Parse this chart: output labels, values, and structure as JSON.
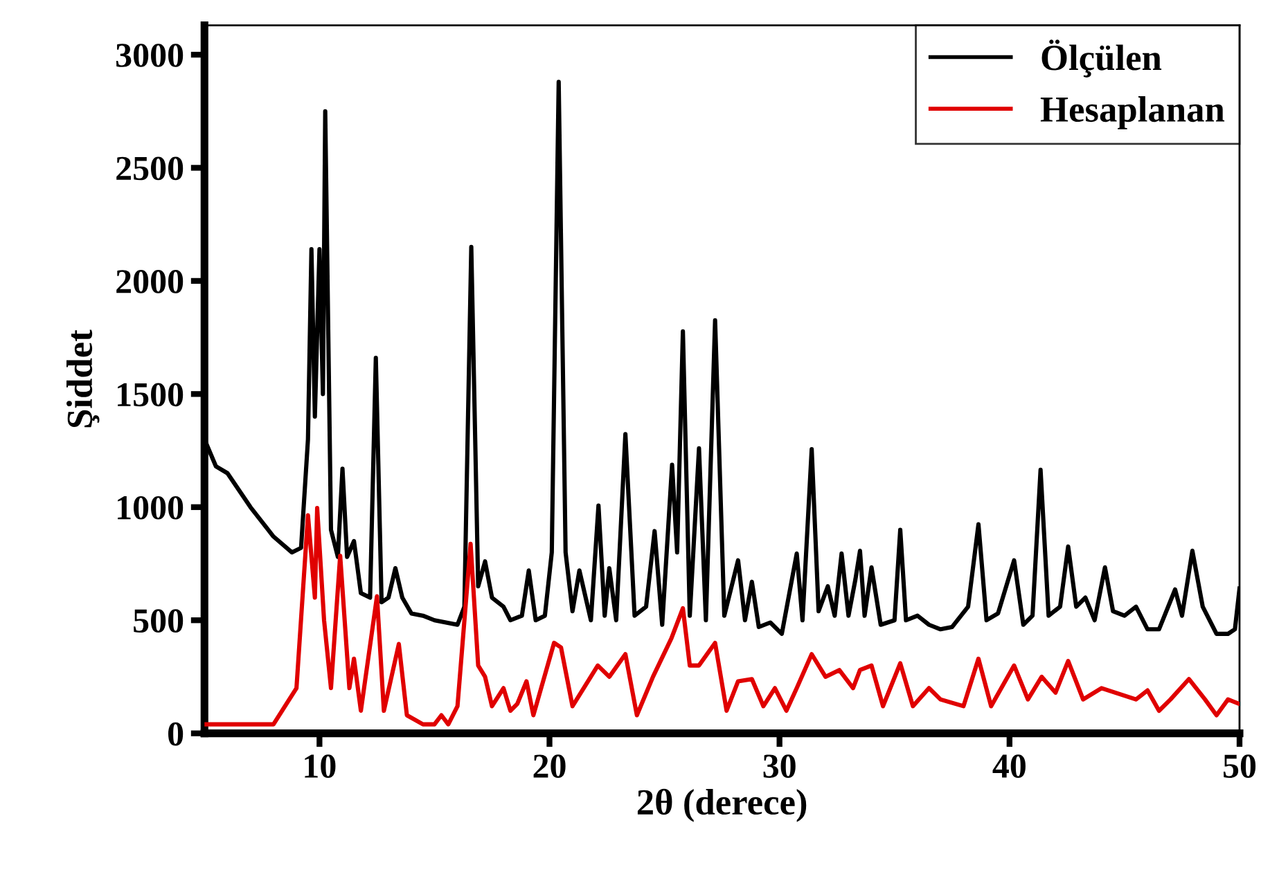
{
  "chart_data": {
    "type": "line",
    "xlabel": "2θ (derece)",
    "ylabel": "Şiddet",
    "xlim": [
      5,
      50
    ],
    "ylim": [
      0,
      3130
    ],
    "xticks": [
      10,
      20,
      30,
      40,
      50
    ],
    "yticks": [
      0,
      500,
      1000,
      1500,
      2000,
      2500,
      3000
    ],
    "grid": false,
    "legend": "top right",
    "marker": "none",
    "line_style": "solid",
    "series": [
      {
        "name": "Ölçülen",
        "color": "#000000",
        "x": [
          5,
          5.5,
          6,
          7,
          8,
          8.8,
          9.2,
          9.5,
          9.65,
          9.8,
          10.0,
          10.15,
          10.25,
          10.5,
          10.8,
          11.0,
          11.2,
          11.5,
          11.8,
          12.2,
          12.45,
          12.7,
          13.0,
          13.3,
          13.6,
          14,
          14.5,
          15,
          16,
          16.3,
          16.6,
          16.9,
          17.2,
          17.5,
          18,
          18.3,
          18.8,
          19.1,
          19.4,
          19.8,
          20.1,
          20.4,
          20.7,
          21.0,
          21.3,
          21.8,
          22.13,
          22.4,
          22.6,
          22.9,
          23.3,
          23.7,
          24.2,
          24.57,
          24.9,
          25.33,
          25.55,
          25.8,
          26.1,
          26.5,
          26.8,
          27.2,
          27.6,
          28.2,
          28.5,
          28.8,
          29.1,
          29.6,
          30.1,
          30.75,
          31.0,
          31.4,
          31.7,
          32.1,
          32.4,
          32.7,
          33.0,
          33.3,
          33.5,
          33.7,
          34.0,
          34.4,
          35.0,
          35.25,
          35.5,
          36,
          36.5,
          37,
          37.5,
          38.2,
          38.65,
          39.0,
          39.5,
          40.2,
          40.6,
          41.0,
          41.35,
          41.7,
          42.2,
          42.55,
          42.9,
          43.3,
          43.7,
          44.15,
          44.5,
          45.0,
          45.5,
          46.0,
          46.5,
          47.2,
          47.5,
          47.95,
          48.4,
          49.0,
          49.5,
          49.8,
          50
        ],
        "values": [
          1300,
          1180,
          1150,
          1000,
          870,
          800,
          820,
          1300,
          2140,
          1400,
          2140,
          1500,
          2750,
          900,
          780,
          1170,
          780,
          850,
          620,
          600,
          1660,
          580,
          600,
          730,
          600,
          530,
          520,
          500,
          480,
          560,
          2150,
          650,
          760,
          600,
          560,
          500,
          520,
          720,
          500,
          520,
          800,
          2880,
          800,
          540,
          720,
          500,
          1007,
          520,
          730,
          500,
          1323,
          520,
          560,
          894,
          480,
          1187,
          800,
          1777,
          520,
          1260,
          500,
          1826,
          520,
          765,
          500,
          670,
          470,
          490,
          440,
          795,
          500,
          1256,
          540,
          650,
          520,
          795,
          520,
          680,
          807,
          520,
          734,
          480,
          500,
          900,
          500,
          520,
          480,
          460,
          470,
          560,
          924,
          500,
          530,
          765,
          480,
          520,
          1165,
          520,
          560,
          826,
          560,
          600,
          500,
          734,
          540,
          520,
          560,
          460,
          460,
          636,
          520,
          807,
          560,
          440,
          440,
          460,
          640
        ]
      },
      {
        "name": "Hesaplanan",
        "color": "#e00000",
        "x": [
          5,
          8,
          9,
          9.5,
          9.8,
          9.9,
          10.2,
          10.5,
          10.9,
          11.3,
          11.5,
          11.8,
          12.5,
          12.8,
          13.45,
          13.8,
          14.5,
          15,
          15.3,
          15.6,
          16,
          16.57,
          16.9,
          17.2,
          17.5,
          18,
          18.3,
          18.6,
          19,
          19.3,
          20.2,
          20.5,
          21,
          22.1,
          22.6,
          23.3,
          23.8,
          24.5,
          25.3,
          25.8,
          26.1,
          26.5,
          27.2,
          27.7,
          28.2,
          28.8,
          29.3,
          29.8,
          30.3,
          30.75,
          31.4,
          32,
          32.6,
          33.2,
          33.5,
          34,
          34.5,
          35.25,
          35.8,
          36.5,
          37,
          38,
          38.65,
          39.2,
          40.2,
          40.8,
          41.4,
          42,
          42.55,
          43.2,
          44,
          44.6,
          45.5,
          46,
          46.5,
          47,
          47.8,
          48.5,
          49,
          49.5,
          50
        ],
        "values": [
          40,
          40,
          200,
          964,
          600,
          996,
          500,
          200,
          785,
          200,
          330,
          100,
          606,
          100,
          395,
          80,
          40,
          40,
          80,
          40,
          120,
          838,
          300,
          250,
          120,
          200,
          100,
          130,
          230,
          80,
          400,
          380,
          120,
          300,
          250,
          350,
          80,
          250,
          420,
          553,
          300,
          300,
          400,
          100,
          230,
          240,
          120,
          200,
          100,
          200,
          350,
          250,
          280,
          200,
          280,
          300,
          120,
          310,
          120,
          200,
          150,
          120,
          330,
          120,
          300,
          150,
          250,
          180,
          320,
          150,
          200,
          180,
          150,
          190,
          100,
          150,
          240,
          150,
          80,
          150,
          130
        ]
      }
    ]
  }
}
